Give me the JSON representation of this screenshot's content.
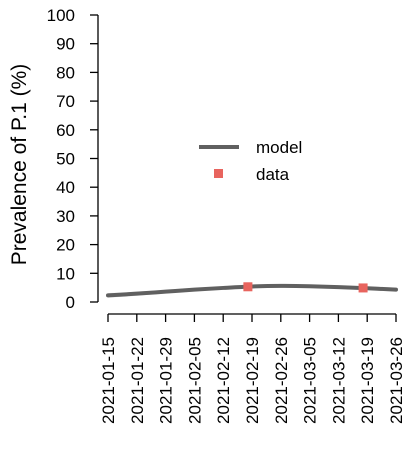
{
  "chart_data": {
    "type": "line",
    "title": "",
    "xlabel": "",
    "ylabel": "Prevalence of P.1 (%)",
    "ylim": [
      0,
      100
    ],
    "y_ticks": [
      0,
      10,
      20,
      30,
      40,
      50,
      60,
      70,
      80,
      90,
      100
    ],
    "x_ticks": [
      "2021-01-15",
      "2021-01-22",
      "2021-01-29",
      "2021-02-05",
      "2021-02-12",
      "2021-02-19",
      "2021-02-26",
      "2021-03-05",
      "2021-03-12",
      "2021-03-19",
      "2021-03-26"
    ],
    "grid": false,
    "legend_position": "center",
    "series": [
      {
        "name": "model",
        "kind": "line",
        "color": "#606060",
        "band_color": "#d9d9d9",
        "x": [
          "2021-01-15",
          "2021-01-22",
          "2021-01-29",
          "2021-02-05",
          "2021-02-12",
          "2021-02-19",
          "2021-02-26",
          "2021-03-05",
          "2021-03-12",
          "2021-03-19",
          "2021-03-26"
        ],
        "values": [
          2.3,
          2.9,
          3.6,
          4.3,
          4.9,
          5.4,
          5.6,
          5.5,
          5.2,
          4.8,
          4.3
        ],
        "lower": [
          1.5,
          2.2,
          3.0,
          3.8,
          4.5,
          5.0,
          5.2,
          5.1,
          4.7,
          4.2,
          3.6
        ],
        "upper": [
          3.1,
          3.6,
          4.2,
          4.8,
          5.3,
          5.8,
          6.0,
          5.9,
          5.7,
          5.4,
          5.0
        ]
      },
      {
        "name": "data",
        "kind": "points",
        "color": "#e8645e",
        "x": [
          "2021-02-18",
          "2021-03-18"
        ],
        "values": [
          5.3,
          4.9
        ]
      }
    ]
  }
}
